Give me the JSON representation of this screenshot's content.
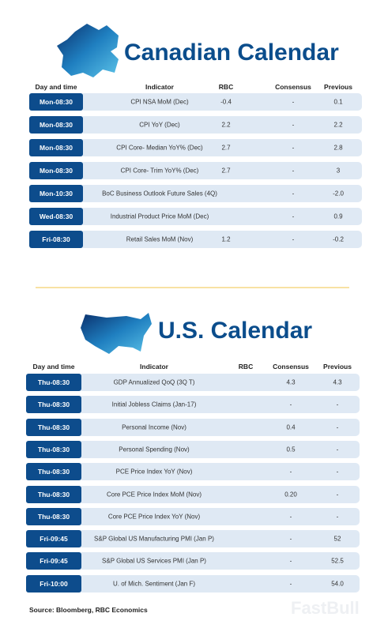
{
  "canada": {
    "title": "Canadian Calendar",
    "headers": [
      "Day and time",
      "Indicator",
      "RBC",
      "Consensus",
      "Previous"
    ],
    "rows": [
      [
        "Mon-08:30",
        "CPI NSA MoM (Dec)",
        "-0.4",
        "-",
        "0.1"
      ],
      [
        "Mon-08:30",
        "CPI YoY (Dec)",
        "2.2",
        "-",
        "2.2"
      ],
      [
        "Mon-08:30",
        "CPI Core- Median YoY% (Dec)",
        "2.7",
        "-",
        "2.8"
      ],
      [
        "Mon-08:30",
        "CPI Core- Trim YoY% (Dec)",
        "2.7",
        "-",
        "3"
      ],
      [
        "Mon-10:30",
        "BoC Business Outlook Future Sales (4Q)",
        null,
        "-",
        "-2.0"
      ],
      [
        "Wed-08:30",
        "Industrial Product Price MoM (Dec)",
        null,
        "-",
        "0.9"
      ],
      [
        "Fri-08:30",
        "Retail Sales MoM (Nov)",
        "1.2",
        "-",
        "-0.2"
      ]
    ]
  },
  "us": {
    "title": "U.S. Calendar",
    "headers": [
      "Day and time",
      "Indicator",
      "RBC",
      "Consensus",
      "Previous"
    ],
    "rows": [
      [
        "Thu-08:30",
        "GDP Annualized QoQ (3Q T)",
        null,
        "4.3",
        "4.3"
      ],
      [
        "Thu-08:30",
        "Initial Jobless Claims (Jan-17)",
        null,
        "-",
        "-"
      ],
      [
        "Thu-08:30",
        "Personal Income (Nov)",
        null,
        "0.4",
        "-"
      ],
      [
        "Thu-08:30",
        "Personal Spending (Nov)",
        null,
        "0.5",
        "-"
      ],
      [
        "Thu-08:30",
        "PCE Price Index YoY (Nov)",
        null,
        "-",
        "-"
      ],
      [
        "Thu-08:30",
        "Core PCE Price Index MoM (Nov)",
        null,
        "0.20",
        "-"
      ],
      [
        "Thu-08:30",
        "Core PCE Price Index YoY (Nov)",
        null,
        "-",
        "-"
      ],
      [
        "Fri-09:45",
        "S&P Global US Manufacturing PMI (Jan P)",
        null,
        "-",
        "52"
      ],
      [
        "Fri-09:45",
        "S&P Global US Services PMI (Jan P)",
        null,
        "-",
        "52.5"
      ],
      [
        "Fri-10:00",
        "U. of Mich. Sentiment (Jan F)",
        null,
        "-",
        "54.0"
      ]
    ]
  },
  "source": "Source: Bloomberg, RBC Economics",
  "watermark": "FastBull"
}
